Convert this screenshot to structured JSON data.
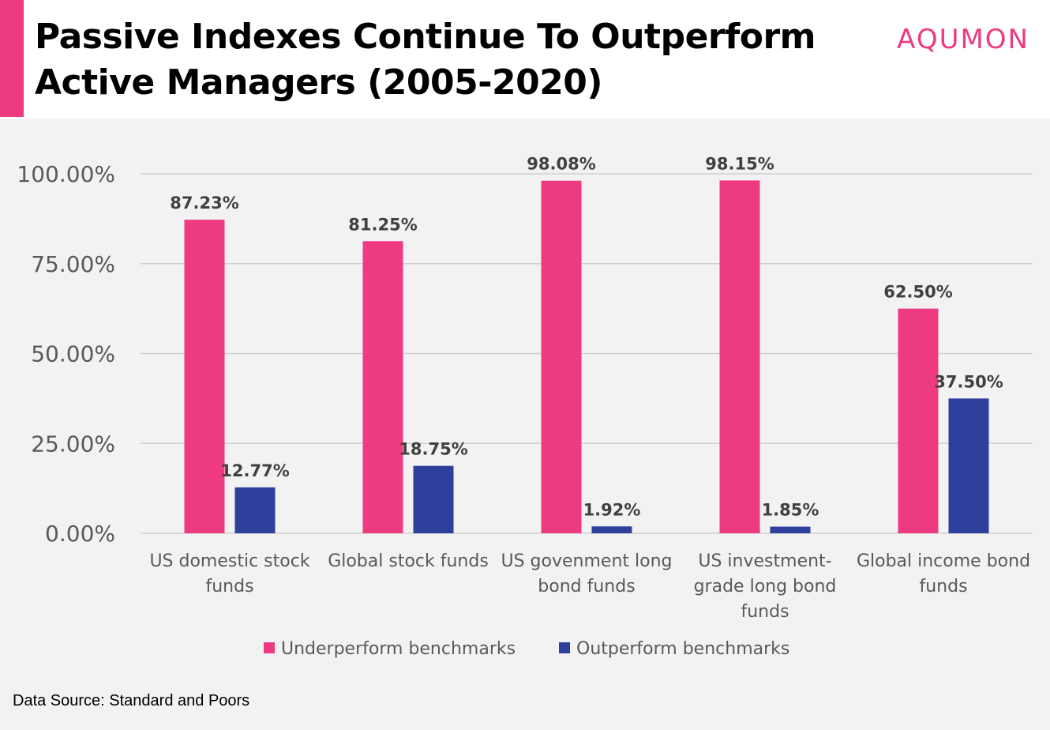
{
  "header": {
    "title_line1": "Passive Indexes Continue To Outperform",
    "title_line2": "Active Managers (2005-2020)",
    "logo_text": "AQUMON"
  },
  "colors": {
    "accent": "#ee3a80",
    "underperform": "#ee3a80",
    "outperform": "#2e409c",
    "background": "#f2f2f2"
  },
  "chart_data": {
    "type": "bar",
    "categories": [
      [
        "US domestic stock",
        "funds"
      ],
      [
        "Global stock funds"
      ],
      [
        "US govenment long",
        "bond funds"
      ],
      [
        "US investment-",
        "grade long bond",
        "funds"
      ],
      [
        "Global income bond",
        "funds"
      ]
    ],
    "series": [
      {
        "name": "Underperform benchmarks",
        "values": [
          87.23,
          81.25,
          98.08,
          98.15,
          62.5
        ],
        "labels": [
          "87.23%",
          "81.25%",
          "98.08%",
          "98.15%",
          "62.50%"
        ]
      },
      {
        "name": "Outperform benchmarks",
        "values": [
          12.77,
          18.75,
          1.92,
          1.85,
          37.5
        ],
        "labels": [
          "12.77%",
          "18.75%",
          "1.92%",
          "1.85%",
          "37.50%"
        ]
      }
    ],
    "yticks": [
      0,
      25,
      50,
      75,
      100
    ],
    "ytick_labels": [
      "0.00%",
      "25.00%",
      "50.00%",
      "75.00%",
      "100.00%"
    ],
    "ylim": [
      0,
      100
    ],
    "grid": true,
    "legend_position": "bottom"
  },
  "footer": {
    "source": "Data Source: Standard and Poors"
  }
}
